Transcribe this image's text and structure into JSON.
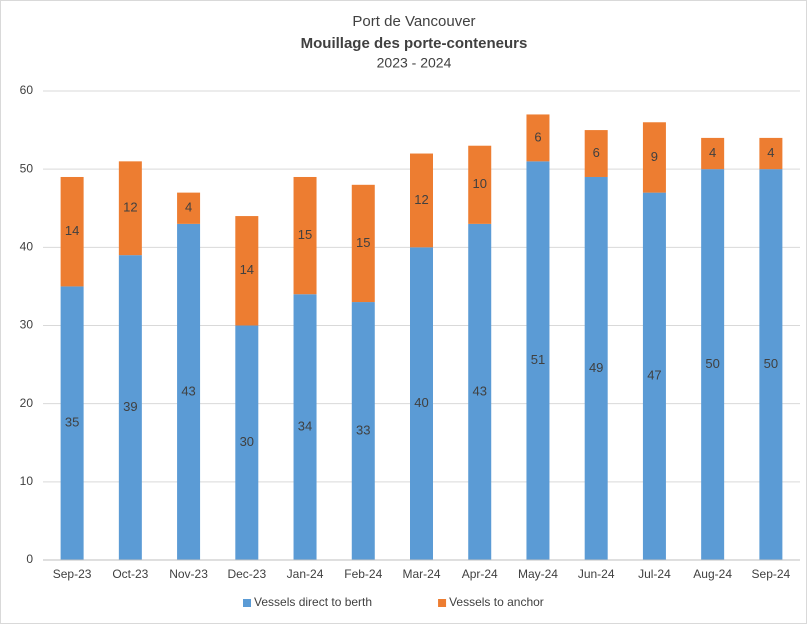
{
  "chart_data": {
    "type": "stacked_bar",
    "title": "Port de Vancouver",
    "subtitle": "Mouillage des porte-conteneurs",
    "period": "2023 - 2024",
    "categories": [
      "Sep-23",
      "Oct-23",
      "Nov-23",
      "Dec-23",
      "Jan-24",
      "Feb-24",
      "Mar-24",
      "Apr-24",
      "May-24",
      "Jun-24",
      "Jul-24",
      "Aug-24",
      "Sep-24"
    ],
    "series": [
      {
        "name": "Vessels direct to berth",
        "color": "#5b9bd5",
        "values": [
          35,
          39,
          43,
          30,
          34,
          33,
          40,
          43,
          51,
          49,
          47,
          50,
          50
        ]
      },
      {
        "name": "Vessels to anchor",
        "color": "#ed7d31",
        "values": [
          14,
          12,
          4,
          14,
          15,
          15,
          12,
          10,
          6,
          6,
          9,
          4,
          4
        ]
      }
    ],
    "ylim": [
      0,
      60
    ],
    "yticks": [
      0,
      10,
      20,
      30,
      40,
      50,
      60
    ],
    "grid": true,
    "legend": "bottom"
  }
}
